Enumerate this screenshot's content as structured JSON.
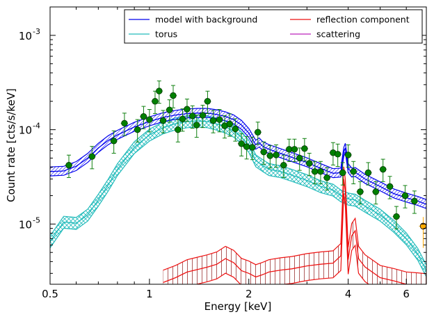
{
  "chart_data": {
    "type": "line",
    "xlabel": "Energy [keV]",
    "ylabel": "Count rate [cts/s/keV]",
    "xscale": "log",
    "yscale": "log",
    "xlim": [
      0.5,
      6.9
    ],
    "ylim": [
      2.3e-06,
      0.002
    ],
    "x_ticks": [
      {
        "value": 0.5,
        "label": "0.5"
      },
      {
        "value": 1,
        "label": "1"
      },
      {
        "value": 2,
        "label": "2"
      },
      {
        "value": 4,
        "label": "4"
      },
      {
        "value": 6,
        "label": "6"
      }
    ],
    "y_ticks": [
      {
        "value": 1e-05,
        "base": "10",
        "exp": "-5"
      },
      {
        "value": 0.0001,
        "base": "10",
        "exp": "-4"
      },
      {
        "value": 0.001,
        "base": "10",
        "exp": "-3"
      }
    ],
    "legend": {
      "placement": "top-right",
      "columns": 2,
      "entries": [
        {
          "label": "model with background",
          "color": "#0000ee"
        },
        {
          "label": "reflection component",
          "color": "#ee1111"
        },
        {
          "label": "torus",
          "color": "#22bbbb"
        },
        {
          "label": "scattering",
          "color": "#bb22bb"
        }
      ]
    },
    "series": [
      {
        "name": "model with background",
        "color": "#0000ee",
        "band": true,
        "x": [
          0.5,
          0.55,
          0.6,
          0.65,
          0.7,
          0.75,
          0.8,
          0.9,
          1.0,
          1.1,
          1.2,
          1.3,
          1.4,
          1.5,
          1.6,
          1.7,
          1.8,
          1.9,
          2.0,
          2.1,
          2.15,
          2.2,
          2.3,
          2.5,
          2.7,
          3.0,
          3.3,
          3.6,
          3.8,
          3.88,
          3.92,
          4.0,
          4.1,
          4.2,
          4.5,
          5.0,
          5.5,
          6.0,
          6.5,
          6.9
        ],
        "y": [
          3.6e-05,
          3.65e-05,
          4.1e-05,
          5e-05,
          6.4e-05,
          7.7e-05,
          8.8e-05,
          0.000107,
          0.000122,
          0.000135,
          0.000143,
          0.000148,
          0.00015,
          0.00015,
          0.000145,
          0.000138,
          0.000128,
          0.000112,
          9.2e-05,
          6.9e-05,
          7.3e-05,
          6.7e-05,
          6.2e-05,
          5.6e-05,
          5.1e-05,
          4.5e-05,
          3.9e-05,
          3.45e-05,
          3.5e-05,
          5.8e-05,
          6.4e-05,
          3.9e-05,
          3.5e-05,
          3.55e-05,
          3e-05,
          2.5e-05,
          2.1e-05,
          1.9e-05,
          1.75e-05,
          1.62e-05
        ]
      },
      {
        "name": "torus",
        "color": "#22bbbb",
        "band": true,
        "x": [
          0.5,
          0.55,
          0.6,
          0.65,
          0.7,
          0.75,
          0.8,
          0.9,
          1.0,
          1.1,
          1.2,
          1.3,
          1.4,
          1.5,
          1.6,
          1.7,
          1.8,
          1.9,
          2.0,
          2.1,
          2.2,
          2.3,
          2.5,
          2.7,
          3.0,
          3.3,
          3.6,
          3.8,
          4.0,
          4.2,
          4.5,
          5.0,
          5.5,
          6.0,
          6.5,
          6.9
        ],
        "y": [
          6.5e-06,
          1.05e-05,
          1.02e-05,
          1.25e-05,
          1.8e-05,
          2.6e-05,
          3.8e-05,
          6.5e-05,
          8.8e-05,
          0.000105,
          0.000116,
          0.000122,
          0.000124,
          0.000122,
          0.000115,
          0.000107,
          9.7e-05,
          8.3e-05,
          6.7e-05,
          4.7e-05,
          4.2e-05,
          3.8e-05,
          3.6e-05,
          3.3e-05,
          2.9e-05,
          2.5e-05,
          2.3e-05,
          2e-05,
          1.85e-05,
          1.8e-05,
          1.55e-05,
          1.25e-05,
          9.5e-06,
          7e-06,
          4.8e-06,
          3.2e-06
        ]
      },
      {
        "name": "reflection component",
        "color": "#ee1111",
        "band": true,
        "x": [
          1.1,
          1.2,
          1.3,
          1.4,
          1.5,
          1.6,
          1.7,
          1.8,
          1.9,
          2.0,
          2.1,
          2.2,
          2.3,
          2.5,
          2.7,
          3.0,
          3.3,
          3.6,
          3.8,
          3.88,
          3.92,
          4.0,
          4.1,
          4.2,
          4.3,
          4.5,
          5.0,
          5.5,
          6.0,
          6.5,
          6.9
        ],
        "y": [
          2.4e-06,
          2.7e-06,
          3.1e-06,
          3.3e-06,
          3.5e-06,
          3.75e-06,
          4.3e-06,
          3.9e-06,
          3.2e-06,
          3e-06,
          2.75e-06,
          2.9e-06,
          3.1e-06,
          3.25e-06,
          3.35e-06,
          3.6e-06,
          3.75e-06,
          3.85e-06,
          4.6e-06,
          3e-05,
          2.2e-05,
          4.2e-06,
          7.5e-06,
          8.5e-06,
          4.3e-06,
          3.5e-06,
          2.7e-06,
          2.5e-06,
          2.3e-06,
          2.25e-06,
          2.2e-06
        ]
      }
    ],
    "data_points": {
      "name": "data",
      "color": "#008000",
      "errorbar_color": "#108010",
      "points": [
        [
          0.57,
          4.2e-05
        ],
        [
          0.67,
          5.2e-05
        ],
        [
          0.78,
          7.6e-05
        ],
        [
          0.84,
          0.000117
        ],
        [
          0.92,
          0.0001
        ],
        [
          0.96,
          0.000138
        ],
        [
          1.0,
          0.000128
        ],
        [
          1.04,
          0.0002
        ],
        [
          1.07,
          0.000257
        ],
        [
          1.1,
          0.000125
        ],
        [
          1.15,
          0.000162
        ],
        [
          1.18,
          0.00023
        ],
        [
          1.22,
          0.0001
        ],
        [
          1.26,
          0.00013
        ],
        [
          1.3,
          0.000165
        ],
        [
          1.35,
          0.00014
        ],
        [
          1.39,
          0.000112
        ],
        [
          1.45,
          0.000142
        ],
        [
          1.5,
          0.0002
        ],
        [
          1.56,
          0.000125
        ],
        [
          1.63,
          0.000128
        ],
        [
          1.69,
          0.00011
        ],
        [
          1.75,
          0.000115
        ],
        [
          1.82,
          0.000102
        ],
        [
          1.9,
          7.1e-05
        ],
        [
          1.97,
          6.6e-05
        ],
        [
          2.05,
          6.5e-05
        ],
        [
          2.13,
          9.4e-05
        ],
        [
          2.22,
          5.8e-05
        ],
        [
          2.32,
          5.3e-05
        ],
        [
          2.42,
          5.4e-05
        ],
        [
          2.55,
          4.2e-05
        ],
        [
          2.65,
          6.2e-05
        ],
        [
          2.75,
          6.2e-05
        ],
        [
          2.85,
          5e-05
        ],
        [
          2.95,
          6.3e-05
        ],
        [
          3.05,
          4.4e-05
        ],
        [
          3.17,
          3.6e-05
        ],
        [
          3.3,
          3.6e-05
        ],
        [
          3.45,
          3.1e-05
        ],
        [
          3.6,
          5.7e-05
        ],
        [
          3.72,
          5.5e-05
        ],
        [
          3.85,
          3.5e-05
        ],
        [
          4.0,
          5.4e-05
        ],
        [
          4.15,
          3.6e-05
        ],
        [
          4.35,
          2.2e-05
        ],
        [
          4.6,
          3.5e-05
        ],
        [
          4.85,
          2.2e-05
        ],
        [
          5.1,
          3.8e-05
        ],
        [
          5.35,
          2.5e-05
        ],
        [
          5.6,
          1.2e-05
        ],
        [
          5.95,
          2e-05
        ],
        [
          6.35,
          1.75e-05
        ]
      ]
    },
    "outlier_point": {
      "x": 6.75,
      "y": 9.5e-06,
      "color": "#ffaa00"
    }
  }
}
